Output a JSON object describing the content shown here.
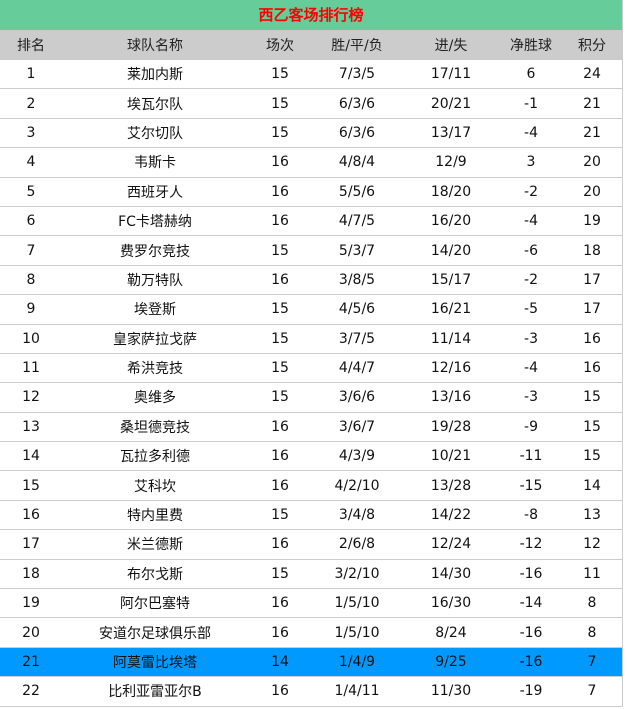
{
  "title": "西乙客场排行榜",
  "highlight_color": "#0099FF",
  "headers": [
    "排名",
    "球队名称",
    "场次",
    "胜/平/负",
    "进/失",
    "净胜球",
    "积分"
  ],
  "highlight_rank": "21",
  "rows": [
    [
      "1",
      "莱加内斯",
      "15",
      "7/3/5",
      "17/11",
      "6",
      "24"
    ],
    [
      "2",
      "埃瓦尔队",
      "15",
      "6/3/6",
      "20/21",
      "-1",
      "21"
    ],
    [
      "3",
      "艾尔切队",
      "15",
      "6/3/6",
      "13/17",
      "-4",
      "21"
    ],
    [
      "4",
      "韦斯卡",
      "16",
      "4/8/4",
      "12/9",
      "3",
      "20"
    ],
    [
      "5",
      "西班牙人",
      "16",
      "5/5/6",
      "18/20",
      "-2",
      "20"
    ],
    [
      "6",
      "FC卡塔赫纳",
      "16",
      "4/7/5",
      "16/20",
      "-4",
      "19"
    ],
    [
      "7",
      "费罗尔竞技",
      "15",
      "5/3/7",
      "14/20",
      "-6",
      "18"
    ],
    [
      "8",
      "勒万特队",
      "16",
      "3/8/5",
      "15/17",
      "-2",
      "17"
    ],
    [
      "9",
      "埃登斯",
      "15",
      "4/5/6",
      "16/21",
      "-5",
      "17"
    ],
    [
      "10",
      "皇家萨拉戈萨",
      "15",
      "3/7/5",
      "11/14",
      "-3",
      "16"
    ],
    [
      "11",
      "希洪竞技",
      "15",
      "4/4/7",
      "12/16",
      "-4",
      "16"
    ],
    [
      "12",
      "奥维多",
      "15",
      "3/6/6",
      "13/16",
      "-3",
      "15"
    ],
    [
      "13",
      "桑坦德竞技",
      "16",
      "3/6/7",
      "19/28",
      "-9",
      "15"
    ],
    [
      "14",
      "瓦拉多利德",
      "16",
      "4/3/9",
      "10/21",
      "-11",
      "15"
    ],
    [
      "15",
      "艾科坎",
      "16",
      "4/2/10",
      "13/28",
      "-15",
      "14"
    ],
    [
      "16",
      "特内里费",
      "15",
      "3/4/8",
      "14/22",
      "-8",
      "13"
    ],
    [
      "17",
      "米兰德斯",
      "16",
      "2/6/8",
      "12/24",
      "-12",
      "12"
    ],
    [
      "18",
      "布尔戈斯",
      "15",
      "3/2/10",
      "14/30",
      "-16",
      "11"
    ],
    [
      "19",
      "阿尔巴塞特",
      "16",
      "1/5/10",
      "16/30",
      "-14",
      "8"
    ],
    [
      "20",
      "安道尔足球俱乐部",
      "16",
      "1/5/10",
      "8/24",
      "-16",
      "8"
    ],
    [
      "21",
      "阿莫雷比埃塔",
      "14",
      "1/4/9",
      "9/25",
      "-16",
      "7"
    ],
    [
      "22",
      "比利亚雷亚尔B",
      "16",
      "1/4/11",
      "11/30",
      "-19",
      "7"
    ]
  ]
}
